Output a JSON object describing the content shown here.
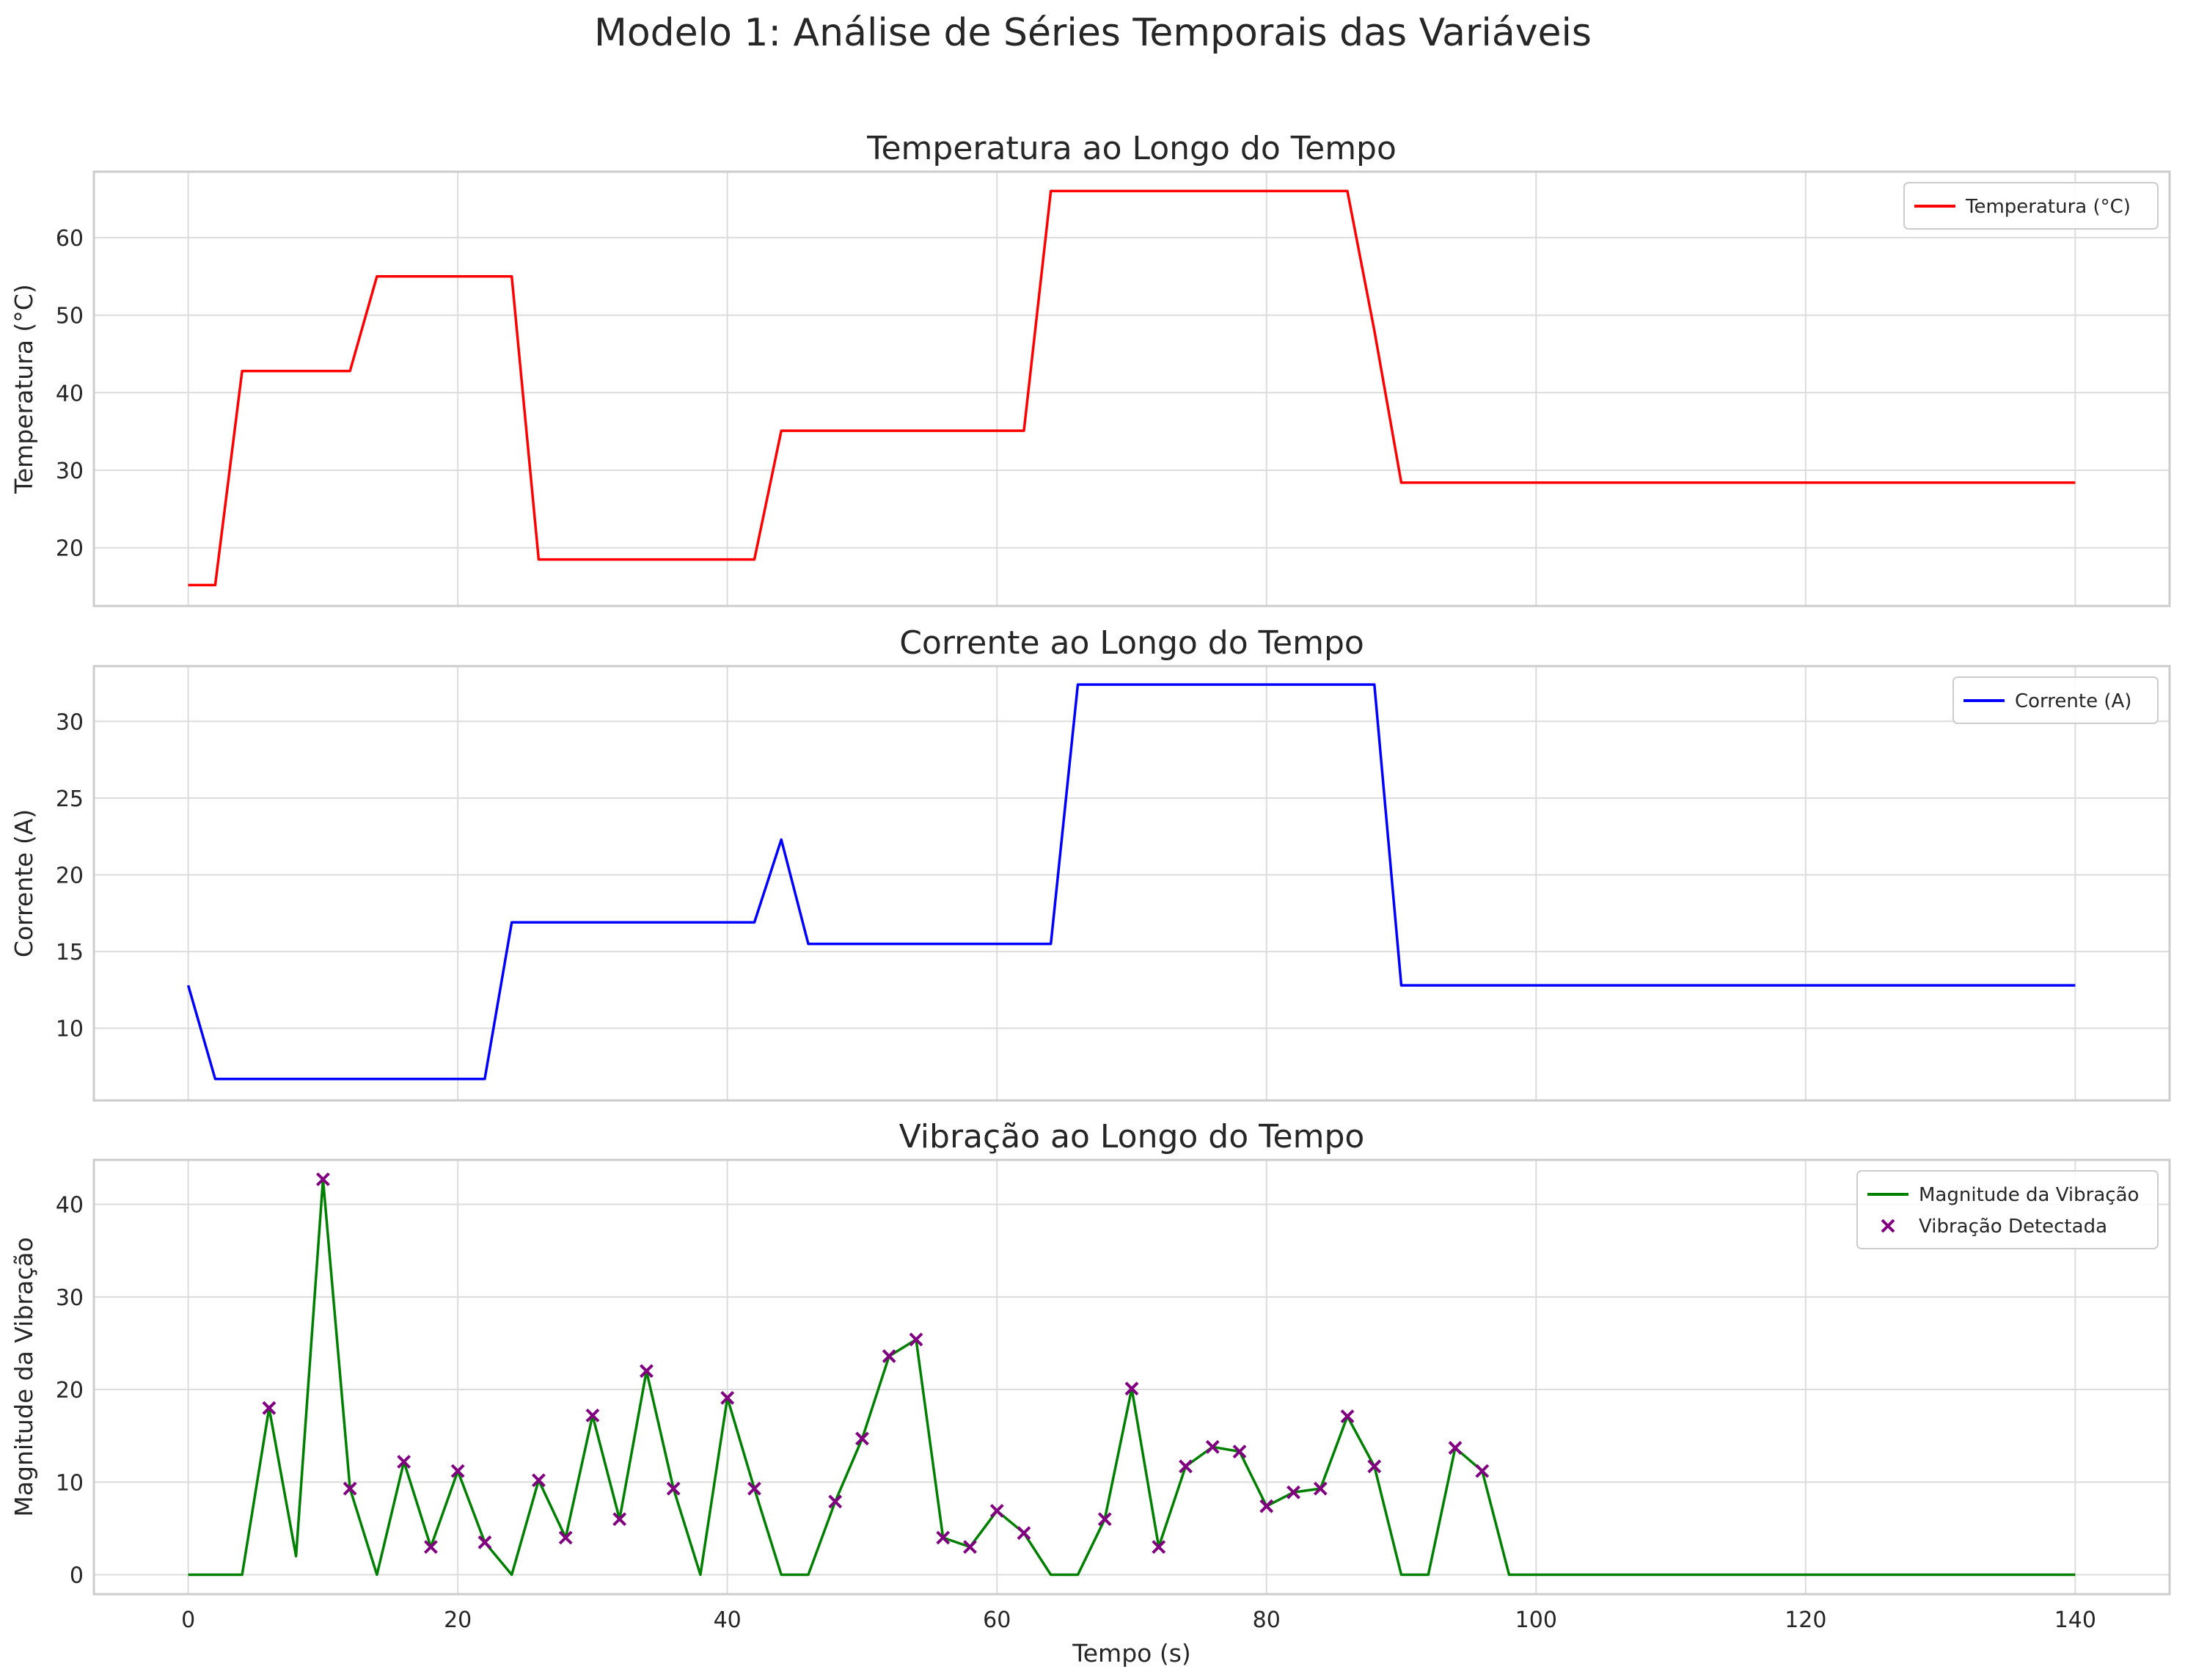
{
  "suptitle": "Modelo 1: Análise de Séries Temporais das Variáveis",
  "colors": {
    "temperature": "#ff0000",
    "current": "#0000ff",
    "vibration": "#008000",
    "detected": "#800080"
  },
  "chart_data": [
    {
      "type": "line",
      "title": "Temperatura ao Longo do Tempo",
      "ylabel": "Temperatura (°C)",
      "xlabel": "",
      "xlim": [
        -7,
        147
      ],
      "ylim": [
        12.5,
        68.5
      ],
      "xticks": [
        0,
        20,
        40,
        60,
        80,
        100,
        120,
        140
      ],
      "yticks": [
        20,
        30,
        40,
        50,
        60
      ],
      "grid": true,
      "legend": "top-right",
      "series": [
        {
          "name": "Temperatura (°C)",
          "color": "#ff0000",
          "x": [
            0,
            2,
            4,
            12,
            14,
            24,
            26,
            42,
            44,
            62,
            64,
            86,
            88,
            90,
            140
          ],
          "y": [
            15.2,
            15.2,
            42.8,
            42.8,
            55,
            55,
            18.5,
            18.5,
            35.1,
            35.1,
            66,
            66,
            48,
            28.4,
            28.4
          ]
        }
      ]
    },
    {
      "type": "line",
      "title": "Corrente ao Longo do Tempo",
      "ylabel": "Corrente (A)",
      "xlabel": "",
      "xlim": [
        -7,
        147
      ],
      "ylim": [
        5.3,
        33.6
      ],
      "xticks": [
        0,
        20,
        40,
        60,
        80,
        100,
        120,
        140
      ],
      "yticks": [
        10,
        15,
        20,
        25,
        30
      ],
      "grid": true,
      "legend": "top-right",
      "series": [
        {
          "name": "Corrente (A)",
          "color": "#0000ff",
          "x": [
            0,
            2,
            22,
            24,
            42,
            44,
            46,
            64,
            66,
            88,
            90,
            140
          ],
          "y": [
            12.8,
            6.7,
            6.7,
            16.9,
            16.9,
            22.3,
            15.5,
            15.5,
            32.4,
            32.4,
            12.8,
            12.8
          ]
        }
      ]
    },
    {
      "type": "line",
      "title": "Vibração ao Longo do Tempo",
      "ylabel": "Magnitude da Vibração",
      "xlabel": "Tempo (s)",
      "xlim": [
        -7,
        147
      ],
      "ylim": [
        -2.1,
        44.8
      ],
      "xticks": [
        0,
        20,
        40,
        60,
        80,
        100,
        120,
        140
      ],
      "yticks": [
        0,
        10,
        20,
        30,
        40
      ],
      "grid": true,
      "legend": "top-right",
      "series": [
        {
          "name": "Magnitude da Vibração",
          "color": "#008000",
          "x": [
            0,
            2,
            4,
            6,
            8,
            10,
            12,
            14,
            16,
            18,
            20,
            22,
            24,
            26,
            28,
            30,
            32,
            34,
            36,
            38,
            40,
            42,
            44,
            46,
            48,
            50,
            52,
            54,
            56,
            58,
            60,
            62,
            64,
            66,
            68,
            70,
            72,
            74,
            76,
            78,
            80,
            82,
            84,
            86,
            88,
            90,
            92,
            94,
            96,
            98,
            140
          ],
          "y": [
            0,
            0,
            0,
            18,
            2,
            42.7,
            9.3,
            0,
            12.2,
            3,
            11.2,
            3.5,
            0,
            10.2,
            4,
            17.2,
            6,
            22,
            9.3,
            0,
            19.1,
            9.3,
            0,
            0,
            7.9,
            14.7,
            23.6,
            25.4,
            4,
            3,
            6.9,
            4.5,
            0,
            0,
            6,
            20.1,
            3,
            11.7,
            13.8,
            13.3,
            7.4,
            8.9,
            9.3,
            17.1,
            11.7,
            0,
            0,
            13.7,
            11.2,
            0,
            0
          ]
        },
        {
          "name": "Vibração Detectada",
          "color": "#800080",
          "marker": "x",
          "x": [
            6,
            10,
            12,
            16,
            18,
            20,
            22,
            26,
            28,
            30,
            32,
            34,
            36,
            40,
            42,
            48,
            50,
            52,
            54,
            56,
            58,
            60,
            62,
            68,
            70,
            72,
            74,
            76,
            78,
            80,
            82,
            84,
            86,
            88,
            94,
            96
          ],
          "y": [
            18,
            42.7,
            9.3,
            12.2,
            3,
            11.2,
            3.5,
            10.2,
            4,
            17.2,
            6,
            22,
            9.3,
            19.1,
            9.3,
            7.9,
            14.7,
            23.6,
            25.4,
            4,
            3,
            6.9,
            4.5,
            6,
            20.1,
            3,
            11.7,
            13.8,
            13.3,
            7.4,
            8.9,
            9.3,
            17.1,
            11.7,
            13.7,
            11.2
          ]
        }
      ]
    }
  ]
}
